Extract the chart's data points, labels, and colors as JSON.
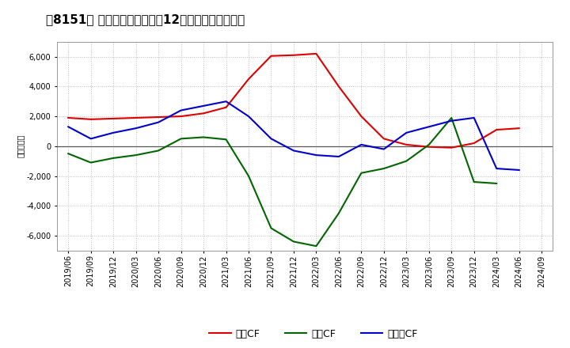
{
  "title": "［8151］ キャッシュフローの12か月移動合計の推移",
  "ylabel": "（百万円）",
  "x_labels": [
    "2019/06",
    "2019/09",
    "2019/12",
    "2020/03",
    "2020/06",
    "2020/09",
    "2020/12",
    "2021/03",
    "2021/06",
    "2021/09",
    "2021/12",
    "2022/03",
    "2022/06",
    "2022/09",
    "2022/12",
    "2023/03",
    "2023/06",
    "2023/09",
    "2023/12",
    "2024/03",
    "2024/06",
    "2024/09"
  ],
  "operating_cf": [
    1900,
    1800,
    1850,
    1900,
    1950,
    2000,
    2200,
    2600,
    4500,
    6050,
    6100,
    6200,
    4000,
    2000,
    500,
    100,
    -50,
    -100,
    200,
    1100,
    1200,
    null
  ],
  "investing_cf": [
    -500,
    -1100,
    -800,
    -600,
    -300,
    500,
    600,
    450,
    -2000,
    -5500,
    -6400,
    -6700,
    -4500,
    -1800,
    -1500,
    -1000,
    100,
    1900,
    -2400,
    -2500,
    null,
    null
  ],
  "free_cf": [
    1300,
    500,
    900,
    1200,
    1600,
    2400,
    2700,
    3000,
    2000,
    500,
    -300,
    -600,
    -700,
    100,
    -200,
    900,
    1300,
    1700,
    1900,
    -1500,
    -1600,
    null
  ],
  "operating_color": "#dd0000",
  "investing_color": "#006600",
  "free_color": "#0000cc",
  "ylim": [
    -7000,
    7000
  ],
  "yticks": [
    -6000,
    -4000,
    -2000,
    0,
    2000,
    4000,
    6000
  ],
  "bg_color": "#ffffff",
  "plot_bg_color": "#ffffff",
  "grid_color": "#bbbbbb",
  "title_fontsize": 11,
  "axis_fontsize": 7,
  "legend_fontsize": 9
}
